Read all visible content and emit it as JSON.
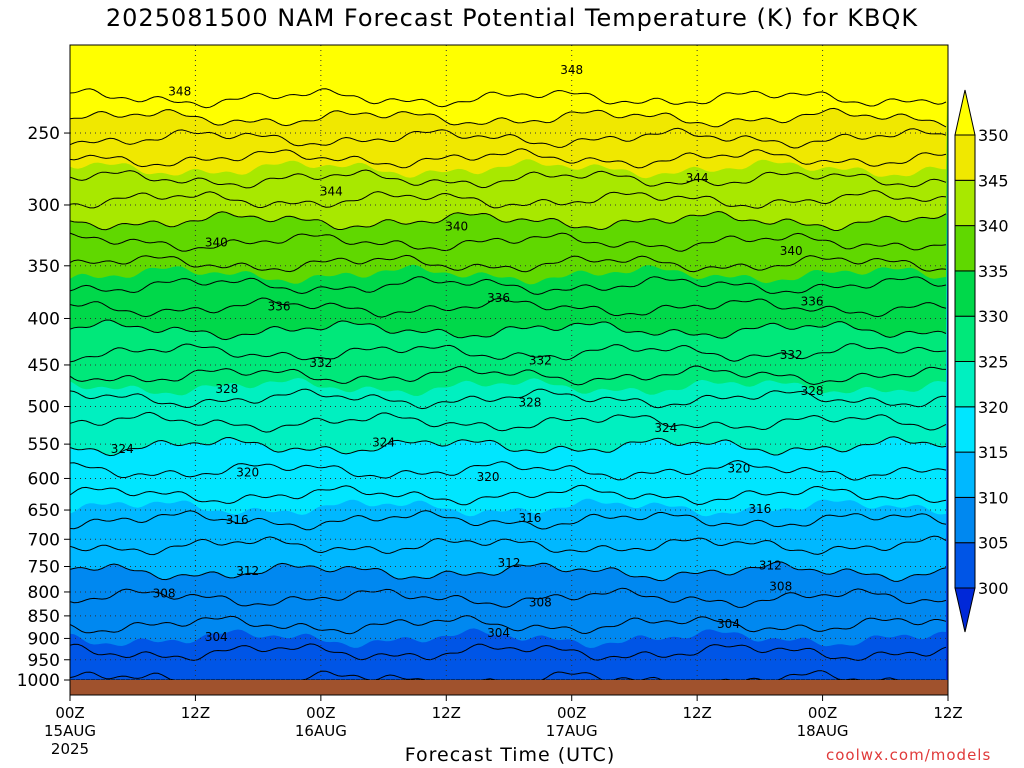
{
  "chart_data": {
    "type": "heatmap",
    "title": "2025081500 NAM Forecast Potential Temperature (K) for KBQK",
    "xlabel": "Forecast Time (UTC)",
    "ylabel": "",
    "credit": "coolwx.com/models",
    "yscale": "log-pressure",
    "y_inverted": true,
    "ylim": [
      1000,
      200
    ],
    "y_ticks": [
      250,
      300,
      350,
      400,
      450,
      500,
      550,
      600,
      650,
      700,
      750,
      800,
      850,
      900,
      950,
      1000
    ],
    "x_range_hours": [
      0,
      84
    ],
    "x_ticks": [
      {
        "hour": 0,
        "label": "00Z",
        "date": "15AUG",
        "year": "2025"
      },
      {
        "hour": 12,
        "label": "12Z",
        "date": "",
        "year": ""
      },
      {
        "hour": 24,
        "label": "00Z",
        "date": "16AUG",
        "year": ""
      },
      {
        "hour": 36,
        "label": "12Z",
        "date": "",
        "year": ""
      },
      {
        "hour": 48,
        "label": "00Z",
        "date": "17AUG",
        "year": ""
      },
      {
        "hour": 60,
        "label": "12Z",
        "date": "",
        "year": ""
      },
      {
        "hour": 72,
        "label": "00Z",
        "date": "18AUG",
        "year": ""
      },
      {
        "hour": 84,
        "label": "12Z",
        "date": "",
        "year": ""
      }
    ],
    "grid": true,
    "colorbar": {
      "position": "right",
      "levels": [
        300,
        305,
        310,
        315,
        320,
        325,
        330,
        335,
        340,
        345,
        350
      ],
      "colors": [
        "#0028d8",
        "#0055e6",
        "#0088f0",
        "#00b8ff",
        "#00e6ff",
        "#00f0c0",
        "#00e87a",
        "#00d84a",
        "#60d800",
        "#a8e800",
        "#f0e800",
        "#ffff00"
      ],
      "extend": "both"
    },
    "contour_interval_K": 2,
    "contour_labels": [
      {
        "value": "348",
        "hour": 10.5,
        "p": 225
      },
      {
        "value": "348",
        "hour": 48,
        "p": 213
      },
      {
        "value": "344",
        "hour": 25,
        "p": 290
      },
      {
        "value": "344",
        "hour": 60,
        "p": 280
      },
      {
        "value": "340",
        "hour": 14,
        "p": 330
      },
      {
        "value": "340",
        "hour": 37,
        "p": 317
      },
      {
        "value": "340",
        "hour": 69,
        "p": 337
      },
      {
        "value": "336",
        "hour": 20,
        "p": 388
      },
      {
        "value": "336",
        "hour": 41,
        "p": 380
      },
      {
        "value": "336",
        "hour": 71,
        "p": 383
      },
      {
        "value": "332",
        "hour": 24,
        "p": 448
      },
      {
        "value": "332",
        "hour": 45,
        "p": 445
      },
      {
        "value": "332",
        "hour": 69,
        "p": 439
      },
      {
        "value": "328",
        "hour": 15,
        "p": 478
      },
      {
        "value": "328",
        "hour": 44,
        "p": 495
      },
      {
        "value": "328",
        "hour": 71,
        "p": 481
      },
      {
        "value": "324",
        "hour": 5,
        "p": 557
      },
      {
        "value": "324",
        "hour": 30,
        "p": 548
      },
      {
        "value": "324",
        "hour": 57,
        "p": 528
      },
      {
        "value": "320",
        "hour": 17,
        "p": 591
      },
      {
        "value": "320",
        "hour": 40,
        "p": 598
      },
      {
        "value": "320",
        "hour": 64,
        "p": 585
      },
      {
        "value": "316",
        "hour": 16,
        "p": 667
      },
      {
        "value": "316",
        "hour": 44,
        "p": 663
      },
      {
        "value": "316",
        "hour": 66,
        "p": 648
      },
      {
        "value": "312",
        "hour": 17,
        "p": 759
      },
      {
        "value": "312",
        "hour": 42,
        "p": 743
      },
      {
        "value": "312",
        "hour": 67,
        "p": 748
      },
      {
        "value": "308",
        "hour": 9,
        "p": 803
      },
      {
        "value": "308",
        "hour": 45,
        "p": 822
      },
      {
        "value": "308",
        "hour": 68,
        "p": 789
      },
      {
        "value": "304",
        "hour": 14,
        "p": 897
      },
      {
        "value": "304",
        "hour": 41,
        "p": 888
      },
      {
        "value": "304",
        "hour": 63,
        "p": 868
      }
    ]
  }
}
